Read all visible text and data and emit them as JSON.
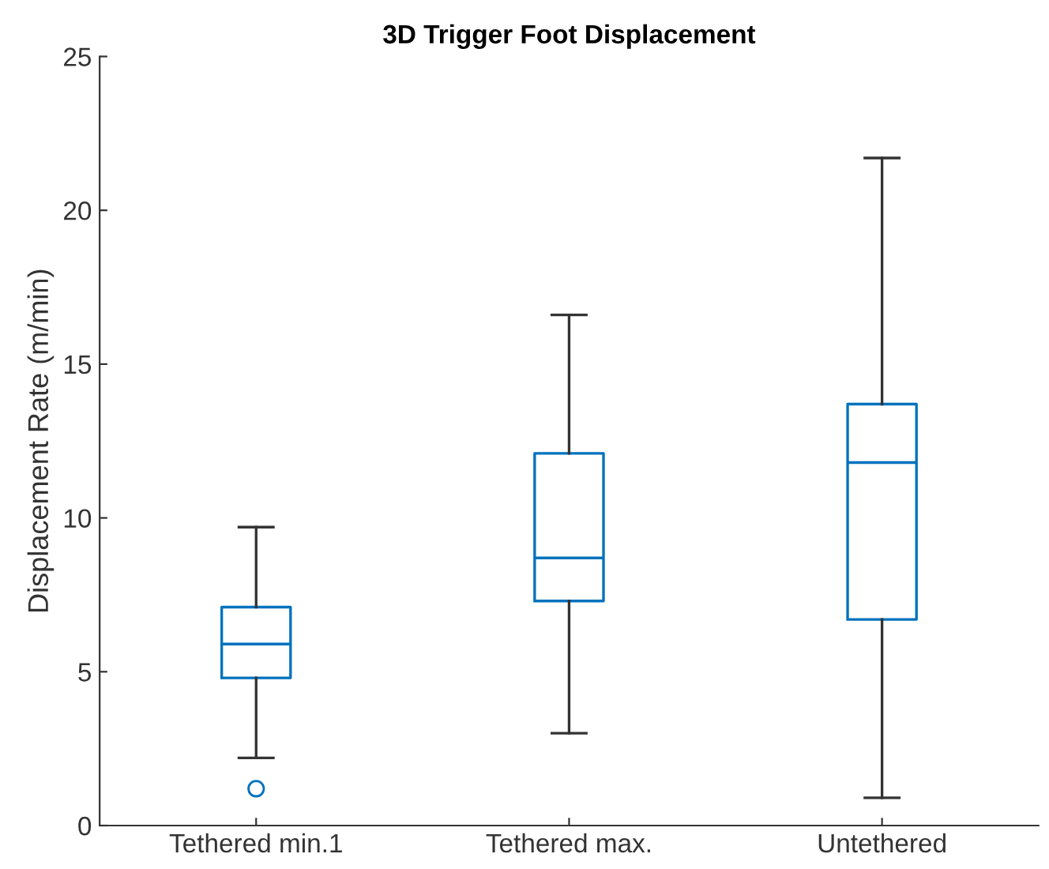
{
  "chart_data": {
    "type": "box",
    "title": "3D Trigger Foot Displacement",
    "ylabel": "Displacement Rate (m/min)",
    "categories": [
      "Tethered min.1",
      "Tethered max.",
      "Untethered"
    ],
    "boxes": [
      {
        "low": 2.2,
        "q1": 4.8,
        "median": 5.9,
        "q3": 7.1,
        "high": 9.7,
        "outliers": [
          1.2
        ]
      },
      {
        "low": 3.0,
        "q1": 7.3,
        "median": 8.7,
        "q3": 12.1,
        "high": 16.6
      },
      {
        "low": 0.9,
        "q1": 6.7,
        "median": 11.8,
        "q3": 13.7,
        "high": 21.7
      }
    ],
    "color": "#0072bd",
    "ylim": [
      0,
      25
    ],
    "yticks": [
      0,
      5,
      10,
      15,
      20,
      25
    ],
    "grid": false
  }
}
